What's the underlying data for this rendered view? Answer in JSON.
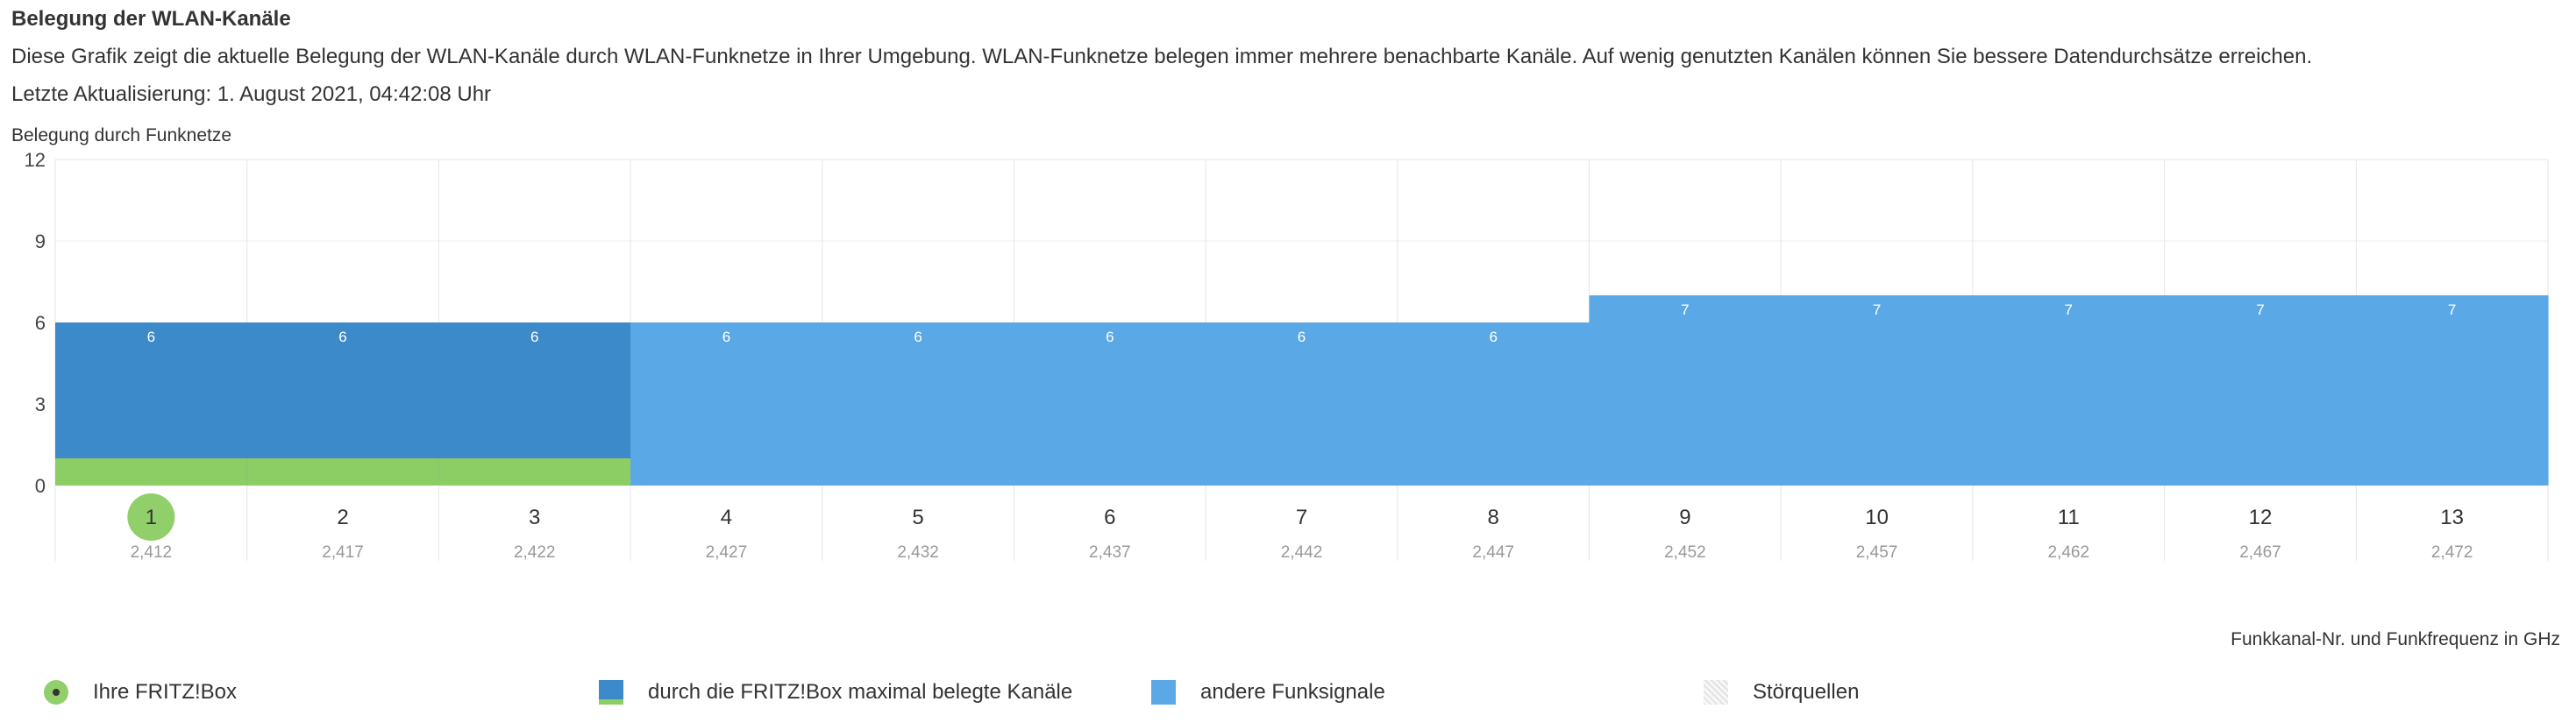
{
  "header": {
    "title": "Belegung der WLAN-Kanäle",
    "description": "Diese Grafik zeigt die aktuelle Belegung der WLAN-Kanäle durch WLAN-Funknetze in Ihrer Umgebung. WLAN-Funknetze belegen immer mehrere benachbarte Kanäle. Auf wenig genutzten Kanälen können Sie bessere Datendurchsätze erreichen.",
    "last_update": "Letzte Aktualisierung: 1. August 2021, 04:42:08 Uhr"
  },
  "chart_data": {
    "type": "bar",
    "title": "Belegung durch Funknetze",
    "xlabel": "Funkkanal-Nr. und Funkfrequenz in GHz",
    "ylabel": "",
    "ylim": [
      0,
      12
    ],
    "yticks": [
      0,
      3,
      6,
      9,
      12
    ],
    "grid": true,
    "categories": [
      "1",
      "2",
      "3",
      "4",
      "5",
      "6",
      "7",
      "8",
      "9",
      "10",
      "11",
      "12",
      "13"
    ],
    "frequencies": [
      "2,412",
      "2,417",
      "2,422",
      "2,427",
      "2,432",
      "2,437",
      "2,442",
      "2,447",
      "2,452",
      "2,457",
      "2,462",
      "2,467",
      "2,472"
    ],
    "values": [
      6,
      6,
      6,
      6,
      6,
      6,
      6,
      6,
      7,
      7,
      7,
      7,
      7
    ],
    "own_channel": "1",
    "fritzbox_channels": [
      "1",
      "2",
      "3"
    ],
    "fritzbox_band_value": 1
  },
  "colors": {
    "fritzbox_max": "#3c8ac9",
    "other_signals": "#5aa9e6",
    "own_band": "#8ccd64",
    "own_channel_circle": "#90cf6a"
  },
  "legend": {
    "fritzbox": "Ihre FRITZ!Box",
    "max_channels": "durch die FRITZ!Box maximal belegte Kanäle",
    "other": "andere Funksignale",
    "interference": "Störquellen"
  }
}
